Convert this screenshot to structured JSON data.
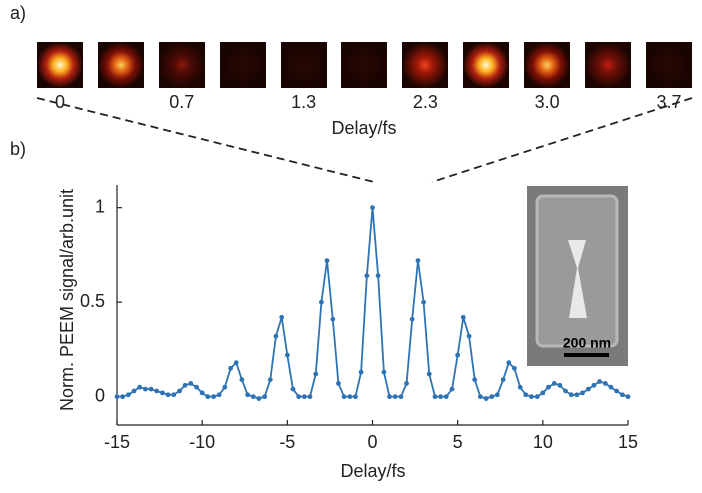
{
  "panel_a": {
    "label": "a)",
    "frame_labels": [
      "0",
      null,
      "0.7",
      null,
      "1.3",
      null,
      "2.3",
      null,
      "3.0",
      null,
      "3.7"
    ],
    "xlabel": "Delay/fs"
  },
  "inset": {
    "scale_label": "200 nm"
  },
  "chart_data": {
    "type": "line",
    "panel_label": "b)",
    "xlabel": "Delay/fs",
    "ylabel": "Norm. PEEM signal/arb.unit",
    "color": "#2f73b4",
    "x": [
      -15,
      -14.67,
      -14.33,
      -14,
      -13.67,
      -13.33,
      -13,
      -12.67,
      -12.33,
      -12,
      -11.67,
      -11.33,
      -11,
      -10.67,
      -10.33,
      -10,
      -9.67,
      -9.33,
      -9,
      -8.67,
      -8.33,
      -8,
      -7.67,
      -7.33,
      -7,
      -6.67,
      -6.33,
      -6,
      -5.67,
      -5.33,
      -5,
      -4.67,
      -4.33,
      -4,
      -3.67,
      -3.33,
      -3,
      -2.67,
      -2.33,
      -2,
      -1.67,
      -1.33,
      -1,
      -0.67,
      -0.33,
      0,
      0.33,
      0.67,
      1,
      1.33,
      1.67,
      2,
      2.33,
      2.67,
      3,
      3.33,
      3.67,
      4,
      4.33,
      4.67,
      5,
      5.33,
      5.67,
      6,
      6.33,
      6.67,
      7,
      7.33,
      7.67,
      8,
      8.33,
      8.67,
      9,
      9.33,
      9.67,
      10,
      10.33,
      10.67,
      11,
      11.33,
      11.67,
      12,
      12.33,
      12.67,
      13,
      13.33,
      13.67,
      14,
      14.33,
      14.67,
      15
    ],
    "values": [
      0,
      0,
      0.01,
      0.03,
      0.05,
      0.04,
      0.04,
      0.03,
      0.02,
      0.01,
      0.01,
      0.03,
      0.06,
      0.07,
      0.05,
      0.02,
      0,
      0,
      0.01,
      0.05,
      0.15,
      0.18,
      0.09,
      0.01,
      0,
      -0.01,
      0,
      0.09,
      0.32,
      0.42,
      0.22,
      0.04,
      0,
      0,
      0,
      0.12,
      0.5,
      0.72,
      0.41,
      0.07,
      0,
      0,
      0,
      0.13,
      0.64,
      1,
      0.64,
      0.13,
      0,
      0,
      0,
      0.07,
      0.41,
      0.72,
      0.5,
      0.12,
      0,
      0,
      0,
      0.04,
      0.22,
      0.42,
      0.32,
      0.09,
      0,
      -0.01,
      0,
      0.01,
      0.09,
      0.18,
      0.15,
      0.05,
      0.01,
      0,
      0,
      0.02,
      0.05,
      0.07,
      0.06,
      0.03,
      0.01,
      0.01,
      0.02,
      0.04,
      0.06,
      0.08,
      0.07,
      0.05,
      0.03,
      0.01,
      0
    ],
    "xlim": [
      -15,
      15
    ],
    "ylim": [
      -0.15,
      1.12
    ],
    "xticks": [
      -15,
      -10,
      -5,
      0,
      5,
      10,
      15
    ],
    "yticks": [
      0,
      0.5,
      1
    ]
  }
}
